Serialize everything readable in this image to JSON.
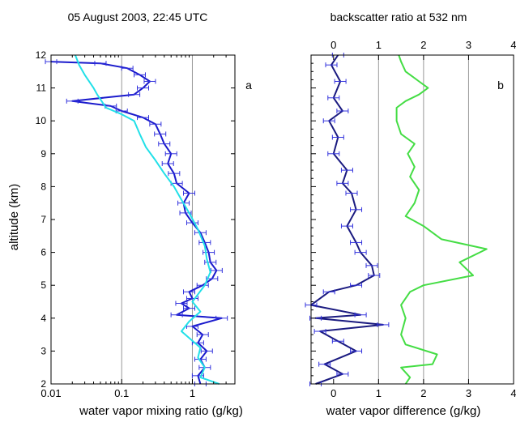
{
  "chart_data": [
    {
      "type": "line",
      "panel_label": "a",
      "title": "05 August 2003, 22:45 UTC",
      "xlabel": "water vapor mixing ratio (g/kg)",
      "ylabel": "altitude (km)",
      "xscale": "log",
      "xlim": [
        0.01,
        4
      ],
      "ylim": [
        2,
        12
      ],
      "xticks": [
        0.01,
        0.1,
        1
      ],
      "xtick_labels": [
        "0.01",
        "0.1",
        "1"
      ],
      "yticks": [
        2,
        3,
        4,
        5,
        6,
        7,
        8,
        9,
        10,
        11,
        12
      ],
      "ytick_labels": [
        "2",
        "3",
        "4",
        "5",
        "6",
        "7",
        "8",
        "9",
        "10",
        "11",
        "12"
      ],
      "vertical_grid_at": [
        0.1,
        1
      ],
      "series": [
        {
          "style": "navy line with blue horizontal error bars",
          "color": "#1a1acc",
          "points": [
            [
              1.3,
              2.0
            ],
            [
              1.2,
              2.25
            ],
            [
              1.5,
              2.5
            ],
            [
              1.3,
              2.75
            ],
            [
              1.6,
              3.0
            ],
            [
              1.2,
              3.25
            ],
            [
              1.4,
              3.5
            ],
            [
              1.0,
              3.75
            ],
            [
              2.6,
              4.0
            ],
            [
              0.6,
              4.1
            ],
            [
              0.9,
              4.3
            ],
            [
              0.7,
              4.45
            ],
            [
              1.0,
              4.6
            ],
            [
              0.9,
              4.8
            ],
            [
              1.4,
              5.0
            ],
            [
              1.9,
              5.2
            ],
            [
              2.2,
              5.45
            ],
            [
              1.8,
              5.7
            ],
            [
              1.7,
              6.0
            ],
            [
              1.5,
              6.3
            ],
            [
              1.3,
              6.6
            ],
            [
              1.0,
              6.9
            ],
            [
              0.8,
              7.2
            ],
            [
              0.75,
              7.5
            ],
            [
              0.9,
              7.8
            ],
            [
              0.6,
              8.1
            ],
            [
              0.55,
              8.4
            ],
            [
              0.45,
              8.7
            ],
            [
              0.5,
              9.0
            ],
            [
              0.4,
              9.3
            ],
            [
              0.35,
              9.6
            ],
            [
              0.3,
              9.9
            ],
            [
              0.2,
              10.1
            ],
            [
              0.1,
              10.3
            ],
            [
              0.07,
              10.45
            ],
            [
              0.02,
              10.6
            ],
            [
              0.15,
              10.8
            ],
            [
              0.2,
              11.0
            ],
            [
              0.25,
              11.2
            ],
            [
              0.18,
              11.4
            ],
            [
              0.12,
              11.6
            ],
            [
              0.05,
              11.75
            ],
            [
              0.01,
              11.8
            ]
          ]
        },
        {
          "style": "cyan line",
          "color": "#22e0e8",
          "points": [
            [
              2.4,
              2.0
            ],
            [
              1.3,
              2.2
            ],
            [
              1.5,
              2.5
            ],
            [
              1.2,
              2.8
            ],
            [
              1.3,
              3.1
            ],
            [
              0.9,
              3.4
            ],
            [
              0.7,
              3.6
            ],
            [
              0.9,
              3.9
            ],
            [
              1.3,
              4.2
            ],
            [
              1.0,
              4.5
            ],
            [
              1.5,
              5.0
            ],
            [
              1.8,
              5.4
            ],
            [
              1.6,
              5.8
            ],
            [
              1.5,
              6.2
            ],
            [
              1.2,
              6.7
            ],
            [
              0.9,
              7.2
            ],
            [
              0.7,
              7.6
            ],
            [
              0.55,
              8.0
            ],
            [
              0.4,
              8.4
            ],
            [
              0.3,
              8.8
            ],
            [
              0.22,
              9.2
            ],
            [
              0.18,
              9.6
            ],
            [
              0.15,
              10.0
            ],
            [
              0.1,
              10.2
            ],
            [
              0.06,
              10.4
            ],
            [
              0.045,
              10.8
            ],
            [
              0.04,
              11.0
            ],
            [
              0.03,
              11.4
            ],
            [
              0.025,
              11.7
            ],
            [
              0.022,
              12.0
            ]
          ]
        }
      ]
    },
    {
      "type": "line",
      "panel_label": "b",
      "title": "backscatter ratio at 532 nm",
      "xlabel": "water vapor difference (g/kg)",
      "xlim": [
        -0.5,
        4
      ],
      "ylim": [
        2,
        12
      ],
      "xticks": [
        0,
        1,
        2,
        3,
        4
      ],
      "xtick_labels": [
        "0",
        "1",
        "2",
        "3",
        "4"
      ],
      "top_xticks": [
        0,
        1,
        2,
        3,
        4
      ],
      "top_xtick_labels": [
        "0",
        "1",
        "2",
        "3",
        "4"
      ],
      "vertical_grid_at": [
        1,
        2,
        3
      ],
      "series": [
        {
          "style": "navy line with error bars",
          "color": "#1a1a80",
          "points": [
            [
              -0.4,
              2.0
            ],
            [
              0.2,
              2.3
            ],
            [
              -0.2,
              2.6
            ],
            [
              0.5,
              3.0
            ],
            [
              0.1,
              3.3
            ],
            [
              -0.3,
              3.6
            ],
            [
              1.1,
              3.8
            ],
            [
              -0.4,
              4.0
            ],
            [
              0.6,
              4.1
            ],
            [
              -0.5,
              4.4
            ],
            [
              -0.1,
              4.8
            ],
            [
              0.5,
              5.0
            ],
            [
              0.9,
              5.3
            ],
            [
              0.85,
              5.6
            ],
            [
              0.6,
              6.0
            ],
            [
              0.5,
              6.3
            ],
            [
              0.3,
              6.8
            ],
            [
              0.5,
              7.3
            ],
            [
              0.4,
              7.8
            ],
            [
              0.2,
              8.1
            ],
            [
              0.3,
              8.5
            ],
            [
              0.0,
              9.0
            ],
            [
              0.1,
              9.5
            ],
            [
              -0.1,
              10.0
            ],
            [
              0.2,
              10.3
            ],
            [
              0.0,
              10.7
            ],
            [
              0.15,
              11.2
            ],
            [
              -0.05,
              11.7
            ],
            [
              0.1,
              12.0
            ]
          ]
        },
        {
          "style": "green line",
          "color": "#44dd44",
          "points": [
            [
              1.6,
              2.0
            ],
            [
              1.7,
              2.2
            ],
            [
              1.5,
              2.5
            ],
            [
              2.2,
              2.6
            ],
            [
              2.3,
              2.9
            ],
            [
              1.6,
              3.2
            ],
            [
              1.5,
              3.5
            ],
            [
              1.6,
              4.0
            ],
            [
              1.5,
              4.4
            ],
            [
              1.7,
              4.8
            ],
            [
              2.0,
              5.0
            ],
            [
              3.1,
              5.3
            ],
            [
              2.8,
              5.7
            ],
            [
              3.4,
              6.1
            ],
            [
              2.4,
              6.4
            ],
            [
              2.0,
              6.8
            ],
            [
              1.6,
              7.1
            ],
            [
              1.8,
              7.5
            ],
            [
              1.9,
              7.9
            ],
            [
              1.7,
              8.3
            ],
            [
              1.8,
              8.6
            ],
            [
              1.65,
              9.0
            ],
            [
              1.8,
              9.3
            ],
            [
              1.5,
              9.6
            ],
            [
              1.4,
              10.0
            ],
            [
              1.4,
              10.4
            ],
            [
              1.6,
              10.6
            ],
            [
              1.9,
              10.8
            ],
            [
              2.1,
              11.0
            ],
            [
              1.9,
              11.2
            ],
            [
              1.6,
              11.5
            ],
            [
              1.5,
              11.8
            ],
            [
              1.45,
              12.0
            ]
          ]
        }
      ]
    }
  ]
}
